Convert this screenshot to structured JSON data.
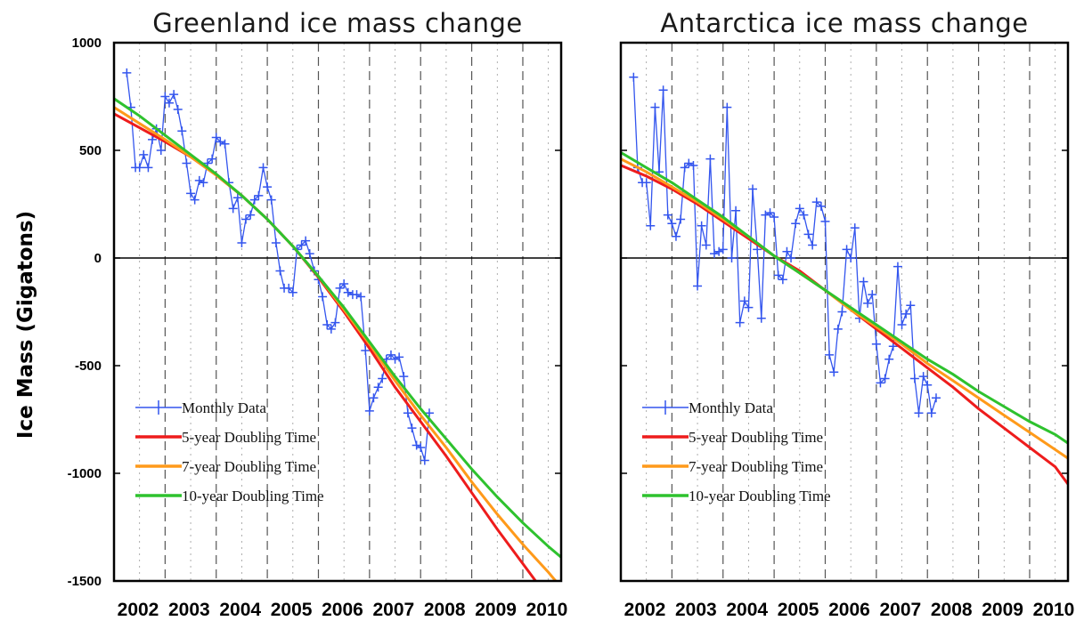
{
  "ylabel": "Ice Mass (Gigatons)",
  "colors": {
    "monthly": "#3355ee",
    "five_year": "#ee1c1c",
    "seven_year": "#ff9a1a",
    "ten_year": "#2ec22e",
    "axis": "#000000",
    "grid": "#555555"
  },
  "chart_data": [
    {
      "type": "line",
      "title": "Greenland ice mass change",
      "xlabel": "",
      "ylabel": "Ice Mass (Gigatons)",
      "xlim": [
        2002,
        2010.75
      ],
      "ylim": [
        -1500,
        1000
      ],
      "xticks": [
        2002,
        2003,
        2004,
        2005,
        2006,
        2007,
        2008,
        2009,
        2010
      ],
      "yticks": [
        1000,
        500,
        0,
        -500,
        -1000,
        -1500
      ],
      "grid": "vertical dashed",
      "legend_position": "bottom-left",
      "legend": [
        "Monthly Data",
        "5-year Doubling Time",
        "7-year Doubling Time",
        "10-year Doubling Time"
      ],
      "series": [
        {
          "name": "Monthly Data",
          "x": [
            2002.25,
            2002.33,
            2002.42,
            2002.5,
            2002.58,
            2002.67,
            2002.75,
            2002.83,
            2002.92,
            2003.0,
            2003.08,
            2003.17,
            2003.25,
            2003.33,
            2003.42,
            2003.5,
            2003.58,
            2003.67,
            2003.75,
            2003.83,
            2003.92,
            2004.0,
            2004.08,
            2004.17,
            2004.25,
            2004.33,
            2004.42,
            2004.5,
            2004.58,
            2004.67,
            2004.75,
            2004.83,
            2004.92,
            2005.0,
            2005.08,
            2005.17,
            2005.25,
            2005.33,
            2005.42,
            2005.5,
            2005.58,
            2005.67,
            2005.75,
            2005.83,
            2005.92,
            2006.0,
            2006.08,
            2006.17,
            2006.25,
            2006.33,
            2006.42,
            2006.5,
            2006.58,
            2006.67,
            2006.75,
            2006.83,
            2006.92,
            2007.0,
            2007.08,
            2007.17,
            2007.25,
            2007.33,
            2007.42,
            2007.5,
            2007.58,
            2007.67,
            2007.75,
            2007.83,
            2007.92,
            2008.0,
            2008.08,
            2008.17
          ],
          "y": [
            860,
            700,
            420,
            420,
            480,
            420,
            550,
            600,
            500,
            750,
            720,
            760,
            690,
            590,
            440,
            300,
            270,
            360,
            350,
            440,
            460,
            560,
            540,
            530,
            350,
            230,
            280,
            70,
            180,
            200,
            270,
            290,
            420,
            330,
            270,
            70,
            -60,
            -140,
            -140,
            -160,
            40,
            60,
            80,
            20,
            -60,
            -100,
            -180,
            -310,
            -330,
            -300,
            -140,
            -120,
            -160,
            -170,
            -170,
            -180,
            -430,
            -710,
            -650,
            -600,
            -560,
            -470,
            -450,
            -470,
            -460,
            -550,
            -720,
            -790,
            -870,
            -880,
            -940,
            -720
          ]
        },
        {
          "name": "5-year Doubling Time",
          "x": [
            2002.0,
            2002.5,
            2003.0,
            2003.5,
            2004.0,
            2004.5,
            2005.0,
            2005.5,
            2006.0,
            2006.5,
            2007.0,
            2007.5,
            2008.0,
            2008.5,
            2009.0,
            2009.5,
            2010.0,
            2010.5,
            2010.75
          ],
          "y": [
            670,
            605,
            540,
            470,
            385,
            290,
            180,
            55,
            -90,
            -250,
            -420,
            -600,
            -760,
            -920,
            -1090,
            -1260,
            -1420,
            -1580,
            -1660
          ]
        },
        {
          "name": "7-year Doubling Time",
          "x": [
            2002.0,
            2002.5,
            2003.0,
            2003.5,
            2004.0,
            2004.5,
            2005.0,
            2005.5,
            2006.0,
            2006.5,
            2007.0,
            2007.5,
            2008.0,
            2008.5,
            2009.0,
            2009.5,
            2010.0,
            2010.5,
            2010.75
          ],
          "y": [
            700,
            625,
            550,
            470,
            385,
            290,
            180,
            55,
            -85,
            -240,
            -400,
            -570,
            -730,
            -880,
            -1040,
            -1190,
            -1330,
            -1460,
            -1530
          ]
        },
        {
          "name": "10-year Doubling Time",
          "x": [
            2002.0,
            2002.5,
            2003.0,
            2003.5,
            2004.0,
            2004.5,
            2005.0,
            2005.5,
            2006.0,
            2006.5,
            2007.0,
            2007.5,
            2008.0,
            2008.5,
            2009.0,
            2009.5,
            2010.0,
            2010.5,
            2010.75
          ],
          "y": [
            740,
            660,
            570,
            480,
            390,
            290,
            180,
            55,
            -85,
            -230,
            -390,
            -550,
            -700,
            -840,
            -980,
            -1110,
            -1230,
            -1340,
            -1390
          ]
        }
      ]
    },
    {
      "type": "line",
      "title": "Antarctica ice mass change",
      "xlabel": "",
      "ylabel": "",
      "xlim": [
        2002,
        2010.75
      ],
      "ylim": [
        -1500,
        1000
      ],
      "xticks": [
        2002,
        2003,
        2004,
        2005,
        2006,
        2007,
        2008,
        2009,
        2010
      ],
      "yticks": [
        1000,
        500,
        0,
        -500,
        -1000,
        -1500
      ],
      "grid": "vertical dashed",
      "legend_position": "bottom-left",
      "legend": [
        "Monthly Data",
        "5-year Doubling Time",
        "7-year Doubling Time",
        "10-year Doubling Time"
      ],
      "series": [
        {
          "name": "Monthly Data",
          "x": [
            2002.25,
            2002.33,
            2002.42,
            2002.5,
            2002.58,
            2002.67,
            2002.75,
            2002.83,
            2002.92,
            2003.0,
            2003.08,
            2003.17,
            2003.25,
            2003.33,
            2003.42,
            2003.5,
            2003.58,
            2003.67,
            2003.75,
            2003.83,
            2003.92,
            2004.0,
            2004.08,
            2004.17,
            2004.25,
            2004.33,
            2004.42,
            2004.5,
            2004.58,
            2004.67,
            2004.75,
            2004.83,
            2004.92,
            2005.0,
            2005.08,
            2005.17,
            2005.25,
            2005.33,
            2005.42,
            2005.5,
            2005.58,
            2005.67,
            2005.75,
            2005.83,
            2005.92,
            2006.0,
            2006.08,
            2006.17,
            2006.25,
            2006.33,
            2006.42,
            2006.5,
            2006.58,
            2006.67,
            2006.75,
            2006.83,
            2006.92,
            2007.0,
            2007.08,
            2007.17,
            2007.25,
            2007.33,
            2007.42,
            2007.5,
            2007.58,
            2007.67,
            2007.75,
            2007.83,
            2007.92,
            2008.0,
            2008.08,
            2008.17
          ],
          "y": [
            840,
            420,
            350,
            350,
            150,
            700,
            400,
            780,
            200,
            160,
            100,
            180,
            420,
            440,
            430,
            -130,
            150,
            60,
            460,
            20,
            30,
            40,
            700,
            0,
            220,
            -300,
            -200,
            -230,
            320,
            40,
            -280,
            200,
            210,
            190,
            -80,
            -100,
            30,
            0,
            160,
            230,
            200,
            110,
            60,
            260,
            240,
            170,
            -450,
            -530,
            -330,
            -250,
            40,
            0,
            140,
            -280,
            -110,
            -210,
            -170,
            -400,
            -580,
            -560,
            -470,
            -410,
            -40,
            -310,
            -260,
            -220,
            -560,
            -720,
            -550,
            -590,
            -720,
            -650
          ]
        },
        {
          "name": "5-year Doubling Time",
          "x": [
            2002.0,
            2002.5,
            2003.0,
            2003.5,
            2004.0,
            2004.5,
            2005.0,
            2005.5,
            2006.0,
            2006.5,
            2007.0,
            2007.5,
            2008.0,
            2008.5,
            2009.0,
            2009.5,
            2010.0,
            2010.5,
            2010.75
          ],
          "y": [
            430,
            380,
            320,
            250,
            170,
            90,
            10,
            -60,
            -150,
            -240,
            -330,
            -420,
            -510,
            -600,
            -700,
            -790,
            -880,
            -970,
            -1050
          ]
        },
        {
          "name": "7-year Doubling Time",
          "x": [
            2002.0,
            2002.5,
            2003.0,
            2003.5,
            2004.0,
            2004.5,
            2005.0,
            2005.5,
            2006.0,
            2006.5,
            2007.0,
            2007.5,
            2008.0,
            2008.5,
            2009.0,
            2009.5,
            2010.0,
            2010.5,
            2010.75
          ],
          "y": [
            460,
            400,
            330,
            260,
            180,
            100,
            10,
            -70,
            -150,
            -240,
            -320,
            -400,
            -490,
            -570,
            -650,
            -730,
            -810,
            -890,
            -930
          ]
        },
        {
          "name": "10-year Doubling Time",
          "x": [
            2002.0,
            2002.5,
            2003.0,
            2003.5,
            2004.0,
            2004.5,
            2005.0,
            2005.5,
            2006.0,
            2006.5,
            2007.0,
            2007.5,
            2008.0,
            2008.5,
            2009.0,
            2009.5,
            2010.0,
            2010.5,
            2010.75
          ],
          "y": [
            490,
            420,
            350,
            270,
            190,
            100,
            10,
            -70,
            -150,
            -230,
            -310,
            -390,
            -470,
            -540,
            -620,
            -690,
            -760,
            -820,
            -860
          ]
        }
      ]
    }
  ]
}
